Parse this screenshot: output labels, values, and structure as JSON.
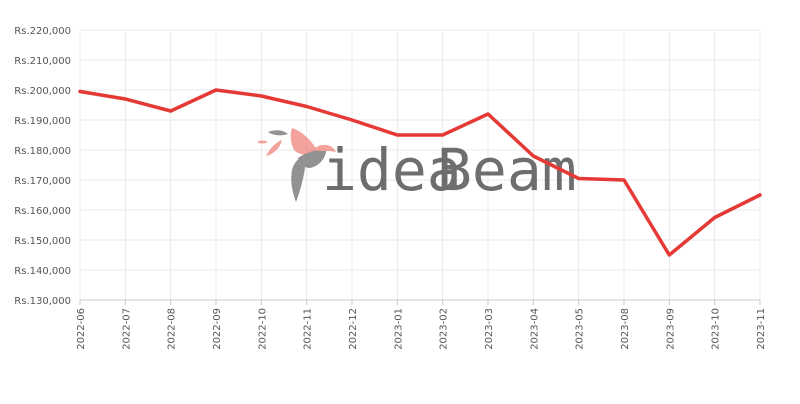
{
  "chart_data": {
    "type": "line",
    "title": "",
    "xlabel": "",
    "ylabel": "",
    "categories": [
      "2022-06",
      "2022-07",
      "2022-08",
      "2022-09",
      "2022-10",
      "2022-11",
      "2022-12",
      "2023-01",
      "2023-02",
      "2023-03",
      "2023-04",
      "2023-05",
      "2023-08",
      "2023-09",
      "2023-10",
      "2023-11"
    ],
    "y_tick_labels": [
      "Rs.130,000",
      "Rs.140,000",
      "Rs.150,000",
      "Rs.160,000",
      "Rs.170,000",
      "Rs.180,000",
      "Rs.190,000",
      "Rs.200,000",
      "Rs.210,000",
      "Rs.220,000"
    ],
    "ylim": [
      130000,
      220000
    ],
    "grid": true,
    "series": [
      {
        "values": [
          199500,
          197000,
          193000,
          200000,
          198000,
          194500,
          190000,
          185000,
          185000,
          192000,
          178000,
          170500,
          170000,
          145000,
          157500,
          165000
        ]
      }
    ],
    "colors": {
      "line": "#e53935",
      "grid": "#e8e8e8",
      "axis": "#cccccc"
    }
  },
  "watermark": {
    "brand_part1": "idea",
    "brand_part2": "Beam",
    "color_part1": "#7f7f7f",
    "color_part2": "#f1928c"
  }
}
